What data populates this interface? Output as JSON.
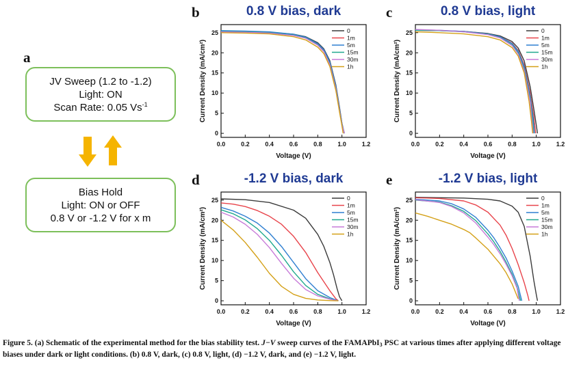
{
  "panel_a": {
    "letter": "a",
    "sweep_box": {
      "line1": "JV Sweep (1.2 to -1.2)",
      "line2": "Light: ON",
      "line3_prefix": "Scan Rate: 0.05 Vs",
      "line3_sup": "-1"
    },
    "hold_box": {
      "line1": "Bias Hold",
      "line2": "Light: ON or OFF",
      "line3": "0.8 V or -1.2 V for x m"
    },
    "arrow_color": "#f5b400",
    "box_border_color": "#7cbf5a"
  },
  "axis_text": {
    "xlabel": "Voltage (V)",
    "ylabel": "Current Density (mA/cm²)",
    "xticks": [
      "0.0",
      "0.2",
      "0.4",
      "0.6",
      "0.8",
      "1.0",
      "1.2"
    ],
    "yticks": [
      "0",
      "5",
      "10",
      "15",
      "20",
      "25"
    ],
    "legend": [
      "0",
      "1m",
      "5m",
      "15m",
      "30m",
      "1h"
    ],
    "colors": [
      "#3a3a3a",
      "#e8434a",
      "#2f7fd1",
      "#1fa88e",
      "#c77ad8",
      "#d4a017"
    ]
  },
  "chart_data": [
    {
      "letter": "b",
      "title": "0.8 V bias, dark",
      "type": "line",
      "xlabel": "Voltage (V)",
      "ylabel": "Current Density (mA/cm²)",
      "xlim": [
        0,
        1.2
      ],
      "ylim": [
        -1,
        27
      ],
      "legend_position": "top-right",
      "series": [
        {
          "name": "0",
          "x": [
            0,
            0.2,
            0.4,
            0.6,
            0.7,
            0.8,
            0.85,
            0.9,
            0.95,
            0.98,
            1.0,
            1.02
          ],
          "y": [
            25.4,
            25.3,
            25.1,
            24.6,
            24.0,
            22.5,
            21.0,
            18.0,
            12.0,
            6.5,
            2.5,
            0
          ]
        },
        {
          "name": "1m",
          "x": [
            0,
            0.2,
            0.4,
            0.6,
            0.7,
            0.8,
            0.85,
            0.9,
            0.95,
            0.98,
            1.0,
            1.02
          ],
          "y": [
            25.4,
            25.3,
            25.1,
            24.5,
            23.8,
            22.2,
            20.6,
            17.5,
            11.5,
            6.0,
            2.3,
            0
          ]
        },
        {
          "name": "5m",
          "x": [
            0,
            0.2,
            0.4,
            0.6,
            0.7,
            0.8,
            0.85,
            0.9,
            0.95,
            0.98,
            1.0,
            1.02
          ],
          "y": [
            25.5,
            25.4,
            25.2,
            24.6,
            23.9,
            22.3,
            20.8,
            17.7,
            11.7,
            6.2,
            2.4,
            0
          ]
        },
        {
          "name": "15m",
          "x": [
            0,
            0.2,
            0.4,
            0.6,
            0.7,
            0.8,
            0.85,
            0.9,
            0.95,
            0.98,
            1.0,
            1.02
          ],
          "y": [
            25.3,
            25.2,
            25.0,
            24.4,
            23.7,
            22.0,
            20.4,
            17.3,
            11.3,
            5.8,
            2.2,
            0
          ]
        },
        {
          "name": "30m",
          "x": [
            0,
            0.2,
            0.4,
            0.6,
            0.7,
            0.8,
            0.85,
            0.9,
            0.95,
            0.98,
            1.0,
            1.02
          ],
          "y": [
            25.2,
            25.1,
            24.9,
            24.3,
            23.6,
            21.9,
            20.3,
            17.1,
            11.1,
            5.7,
            2.1,
            0
          ]
        },
        {
          "name": "1h",
          "x": [
            0,
            0.2,
            0.4,
            0.6,
            0.7,
            0.8,
            0.85,
            0.9,
            0.95,
            0.98,
            1.0,
            1.01
          ],
          "y": [
            25.0,
            24.9,
            24.7,
            24.0,
            23.2,
            21.4,
            19.8,
            16.6,
            10.6,
            5.3,
            1.8,
            0
          ]
        }
      ]
    },
    {
      "letter": "c",
      "title": "0.8 V bias, light",
      "type": "line",
      "xlabel": "Voltage (V)",
      "ylabel": "Current Density (mA/cm²)",
      "xlim": [
        0,
        1.2
      ],
      "ylim": [
        -1,
        27
      ],
      "legend_position": "top-right",
      "series": [
        {
          "name": "0",
          "x": [
            0,
            0.2,
            0.4,
            0.6,
            0.7,
            0.8,
            0.85,
            0.9,
            0.95,
            0.98,
            1.0,
            1.01
          ],
          "y": [
            25.6,
            25.5,
            25.3,
            24.8,
            24.2,
            22.8,
            21.2,
            18.0,
            11.5,
            6.0,
            2.0,
            0
          ]
        },
        {
          "name": "1m",
          "x": [
            0,
            0.2,
            0.4,
            0.6,
            0.7,
            0.8,
            0.85,
            0.9,
            0.95,
            0.98,
            0.995
          ],
          "y": [
            25.6,
            25.5,
            25.3,
            24.7,
            24.0,
            22.4,
            20.6,
            17.0,
            10.0,
            4.0,
            0
          ]
        },
        {
          "name": "5m",
          "x": [
            0,
            0.2,
            0.4,
            0.6,
            0.7,
            0.8,
            0.85,
            0.9,
            0.95,
            0.975,
            0.985
          ],
          "y": [
            25.7,
            25.6,
            25.3,
            24.7,
            24.0,
            22.3,
            20.4,
            16.6,
            9.2,
            3.5,
            0
          ]
        },
        {
          "name": "15m",
          "x": [
            0,
            0.2,
            0.4,
            0.6,
            0.7,
            0.8,
            0.85,
            0.9,
            0.95,
            0.97,
            0.98
          ],
          "y": [
            25.6,
            25.5,
            25.2,
            24.6,
            23.8,
            22.0,
            20.0,
            16.0,
            8.5,
            3.5,
            0
          ]
        },
        {
          "name": "30m",
          "x": [
            0,
            0.2,
            0.4,
            0.6,
            0.7,
            0.8,
            0.85,
            0.9,
            0.95,
            0.965,
            0.975
          ],
          "y": [
            25.8,
            25.6,
            25.2,
            24.5,
            23.7,
            21.8,
            19.7,
            15.6,
            7.8,
            3.0,
            0
          ]
        },
        {
          "name": "1h",
          "x": [
            0,
            0.2,
            0.4,
            0.6,
            0.7,
            0.8,
            0.85,
            0.9,
            0.94,
            0.96,
            0.97
          ],
          "y": [
            25.2,
            25.0,
            24.7,
            24.0,
            23.2,
            21.3,
            19.2,
            15.0,
            8.0,
            3.0,
            0
          ]
        }
      ]
    },
    {
      "letter": "d",
      "title": "-1.2 V bias, dark",
      "type": "line",
      "xlabel": "Voltage (V)",
      "ylabel": "Current Density (mA/cm²)",
      "xlim": [
        0,
        1.2
      ],
      "ylim": [
        -1,
        27
      ],
      "legend_position": "top-right",
      "series": [
        {
          "name": "0",
          "x": [
            0,
            0.2,
            0.4,
            0.6,
            0.7,
            0.8,
            0.85,
            0.9,
            0.93,
            0.96,
            0.98,
            1.0
          ],
          "y": [
            25.3,
            25.1,
            24.4,
            22.5,
            20.5,
            16.5,
            13.5,
            9.5,
            6.5,
            3.0,
            1.0,
            0
          ]
        },
        {
          "name": "1m",
          "x": [
            0,
            0.1,
            0.2,
            0.3,
            0.4,
            0.5,
            0.6,
            0.7,
            0.8,
            0.9,
            0.95,
            0.97
          ],
          "y": [
            24.3,
            24.0,
            23.4,
            22.4,
            21.0,
            19.0,
            16.0,
            12.0,
            7.0,
            2.5,
            0.5,
            0
          ]
        },
        {
          "name": "5m",
          "x": [
            0,
            0.1,
            0.2,
            0.3,
            0.4,
            0.5,
            0.6,
            0.7,
            0.8,
            0.9,
            0.95,
            0.97
          ],
          "y": [
            23.2,
            22.3,
            21.0,
            19.3,
            16.8,
            13.5,
            9.5,
            5.5,
            2.5,
            0.8,
            0.2,
            0
          ]
        },
        {
          "name": "15m",
          "x": [
            0,
            0.1,
            0.2,
            0.3,
            0.4,
            0.5,
            0.6,
            0.7,
            0.8,
            0.9,
            0.95,
            0.97
          ],
          "y": [
            22.6,
            21.6,
            20.1,
            17.9,
            15.0,
            11.3,
            7.2,
            3.8,
            1.6,
            0.5,
            0.1,
            0
          ]
        },
        {
          "name": "30m",
          "x": [
            0,
            0.1,
            0.2,
            0.3,
            0.4,
            0.5,
            0.6,
            0.7,
            0.8,
            0.9,
            0.95,
            0.97
          ],
          "y": [
            22.0,
            20.8,
            19.0,
            16.5,
            13.2,
            9.3,
            5.6,
            2.8,
            1.2,
            0.4,
            0.1,
            0
          ]
        },
        {
          "name": "1h",
          "x": [
            0,
            0.1,
            0.2,
            0.3,
            0.4,
            0.5,
            0.6,
            0.7,
            0.8,
            0.9,
            0.95,
            0.97
          ],
          "y": [
            20.0,
            17.6,
            14.5,
            10.8,
            6.8,
            3.6,
            1.6,
            0.6,
            0.2,
            0.05,
            0,
            0
          ]
        }
      ]
    },
    {
      "letter": "e",
      "title": "-1.2 V bias, light",
      "type": "line",
      "xlabel": "Voltage (V)",
      "ylabel": "Current Density (mA/cm²)",
      "xlim": [
        0,
        1.2
      ],
      "ylim": [
        -1,
        27
      ],
      "legend_position": "top-right",
      "series": [
        {
          "name": "0",
          "x": [
            0,
            0.2,
            0.4,
            0.6,
            0.7,
            0.8,
            0.85,
            0.9,
            0.95,
            0.98,
            1.0,
            1.01
          ],
          "y": [
            25.7,
            25.6,
            25.5,
            25.2,
            24.8,
            23.5,
            22.0,
            18.5,
            11.0,
            5.0,
            1.5,
            0
          ]
        },
        {
          "name": "1m",
          "x": [
            0,
            0.2,
            0.4,
            0.5,
            0.6,
            0.7,
            0.75,
            0.8,
            0.85,
            0.9,
            0.93,
            0.94
          ],
          "y": [
            25.6,
            25.4,
            24.8,
            23.8,
            22.0,
            18.8,
            16.3,
            13.0,
            9.0,
            4.5,
            1.3,
            0
          ]
        },
        {
          "name": "5m",
          "x": [
            0,
            0.2,
            0.3,
            0.4,
            0.5,
            0.6,
            0.65,
            0.7,
            0.75,
            0.8,
            0.85,
            0.88
          ],
          "y": [
            25.2,
            24.8,
            24.1,
            22.8,
            20.7,
            17.5,
            15.6,
            13.2,
            10.6,
            7.4,
            3.6,
            0
          ]
        },
        {
          "name": "15m",
          "x": [
            0,
            0.2,
            0.3,
            0.4,
            0.5,
            0.6,
            0.65,
            0.7,
            0.75,
            0.8,
            0.84,
            0.87
          ],
          "y": [
            25.0,
            24.5,
            23.6,
            22.2,
            19.9,
            16.6,
            14.6,
            12.3,
            9.6,
            6.6,
            3.5,
            0
          ]
        },
        {
          "name": "30m",
          "x": [
            0,
            0.2,
            0.3,
            0.4,
            0.5,
            0.6,
            0.65,
            0.7,
            0.75,
            0.8,
            0.84,
            0.86
          ],
          "y": [
            25.1,
            24.4,
            23.4,
            21.8,
            19.3,
            15.8,
            13.9,
            11.7,
            9.1,
            6.2,
            3.2,
            0
          ]
        },
        {
          "name": "1h",
          "x": [
            0,
            0.1,
            0.2,
            0.3,
            0.4,
            0.45,
            0.5,
            0.6,
            0.7,
            0.75,
            0.8,
            0.85
          ],
          "y": [
            21.8,
            21.0,
            20.0,
            19.0,
            17.7,
            16.9,
            15.6,
            12.8,
            9.2,
            7.0,
            4.2,
            0.5
          ]
        }
      ]
    }
  ],
  "caption": {
    "lead": "Figure 5. (a) Schematic of the experimental method for the bias stability test. ",
    "jv": "J−V",
    "mid": " sweep curves of the FAMAPbI",
    "sub": "3",
    "tail": " PSC at various times after applying different voltage biases under dark or light conditions. (b) 0.8 V, dark, (c) 0.8 V, light, (d) −1.2 V, dark, and (e) −1.2 V, light."
  }
}
